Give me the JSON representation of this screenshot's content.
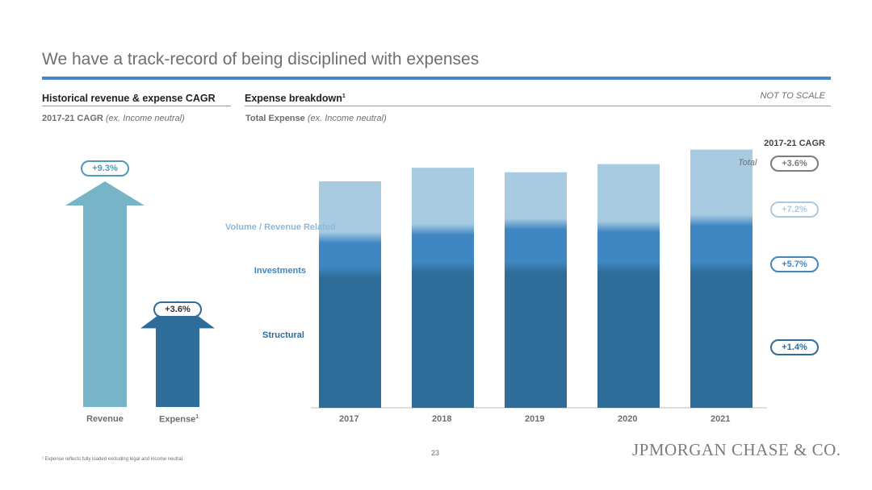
{
  "slide": {
    "title": "We have a track-record of being disciplined with expenses",
    "page_number": "23",
    "footnote": "¹ Expense reflects fully loaded excluding legal and income neutral.",
    "logo": "JPMORGAN CHASE & CO."
  },
  "left_panel": {
    "heading": "Historical revenue & expense CAGR",
    "subtitle_bold": "2017-21 CAGR",
    "subtitle_italic": "(ex. Income neutral)"
  },
  "right_panel": {
    "heading": "Expense breakdown",
    "heading_sup": "1",
    "note": "NOT TO SCALE",
    "subtitle_bold": "Total Expense",
    "subtitle_italic": "(ex. Income neutral)",
    "cagr_header": "2017-21 CAGR",
    "total_label": "Total"
  },
  "colors": {
    "structural": "#2e6d99",
    "investments": "#3f87c2",
    "volume": "#a8cbe2",
    "revenue_arrow": "#78b4c8",
    "expense_arrow": "#2e6d99",
    "total_pill": "#7b7c7f"
  },
  "chart_data": [
    {
      "type": "bar",
      "title": "Historical revenue & expense CAGR",
      "categories": [
        "Revenue",
        "Expense"
      ],
      "category_sup": [
        "",
        "1"
      ],
      "values": [
        9.3,
        3.6
      ],
      "labels": [
        "+9.3%",
        "+3.6%"
      ],
      "unit": "%"
    },
    {
      "type": "bar",
      "stacked": true,
      "title": "Expense breakdown",
      "categories": [
        "2017",
        "2018",
        "2019",
        "2020",
        "2021"
      ],
      "series": [
        {
          "name": "Structural",
          "values": [
            150,
            155,
            155,
            155,
            155
          ],
          "cagr": "+1.4%"
        },
        {
          "name": "Investments",
          "values": [
            38,
            42,
            48,
            45,
            52
          ],
          "cagr": "+5.7%"
        },
        {
          "name": "Volume / Revenue Related",
          "values": [
            62,
            68,
            57,
            69,
            78
          ],
          "cagr": "+7.2%"
        }
      ],
      "total_cagr": "+3.6%",
      "ylim": [
        0,
        290
      ]
    }
  ]
}
